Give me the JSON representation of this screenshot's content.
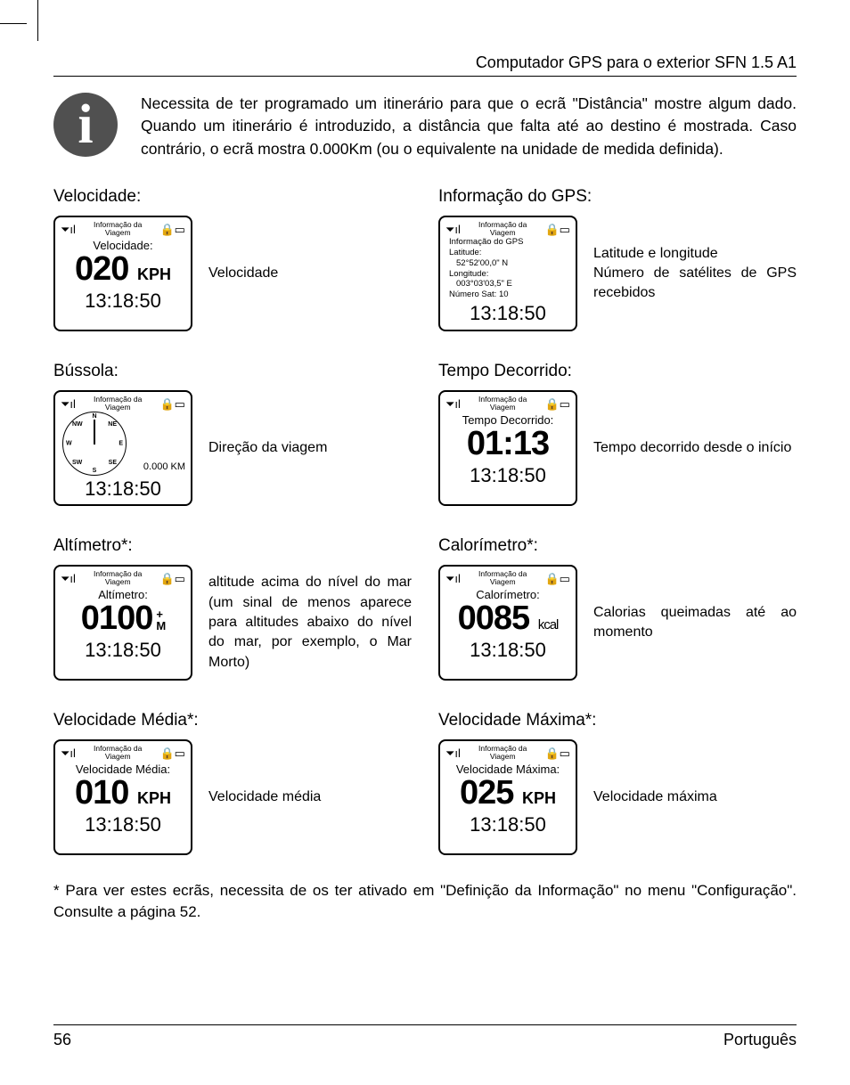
{
  "header": "Computador GPS para o exterior SFN 1.5 A1",
  "info_icon_glyph": "i",
  "info_text": "Necessita de ter programado um itinerário para que o ecrã \"Distância\" mostre algum dado. Quando um itinerário é introduzido, a distância que falta até ao destino é mostrada. Caso contrário, o ecrã mostra 0.000Km (ou o equivalente na unidade de medida definida).",
  "common": {
    "toplabel_l1": "Informação da",
    "toplabel_l2": "Viagem",
    "signal_glyph": "⏷ıl",
    "lock_glyph": "🔒▭",
    "clock": "13:18:50"
  },
  "velocidade": {
    "title": "Velocidade:",
    "label": "Velocidade:",
    "value": "020",
    "unit": "KPH",
    "desc": "Velocidade"
  },
  "gps": {
    "title": "Informação do GPS:",
    "line1": "Informação do GPS",
    "lat_label": "Latitude:",
    "lat_val": "52°52'00,0\" N",
    "lon_label": "Longitude:",
    "lon_val": "003°03'03,5\" E",
    "sat": "Número Sat: 10",
    "desc": "Latitude e longitude\nNúmero de satélites de GPS recebidos"
  },
  "bussola": {
    "title": "Bússola:",
    "km": "0.000 KM",
    "desc": "Direção da viagem",
    "dirs": {
      "n": "N",
      "s": "S",
      "e": "E",
      "w": "W",
      "ne": "NE",
      "nw": "NW",
      "se": "SE",
      "sw": "SW"
    }
  },
  "tempo": {
    "title": "Tempo Decorrido:",
    "label": "Tempo Decorrido:",
    "value": "01:13",
    "desc": "Tempo decorrido desde o início"
  },
  "altimetro": {
    "title": "Altímetro*:",
    "label": "Altímetro:",
    "value": "0100",
    "unit_top": "+",
    "unit_bot": "M",
    "desc": "altitude acima do nível do mar (um sinal de menos aparece para altitudes abaixo do nível do mar, por exemplo, o Mar Morto)"
  },
  "calorimetro": {
    "title": "Calorímetro*:",
    "label": "Calorímetro:",
    "value": "0085",
    "unit": "kcal",
    "desc": "Calorias queimadas até ao momento"
  },
  "velmedia": {
    "title": "Velocidade Média*:",
    "label": "Velocidade Média:",
    "value": "010",
    "unit": "KPH",
    "desc": "Velocidade média"
  },
  "velmax": {
    "title": "Velocidade Máxima*:",
    "label": "Velocidade Máxima:",
    "value": "025",
    "unit": "KPH",
    "desc": "Velocidade máxima"
  },
  "footnote": "* Para ver estes ecrãs, necessita de os ter ativado em \"Definição da Informação\" no menu \"Configuração\". Consulte a página 52.",
  "footer": {
    "page": "56",
    "lang": "Português"
  }
}
